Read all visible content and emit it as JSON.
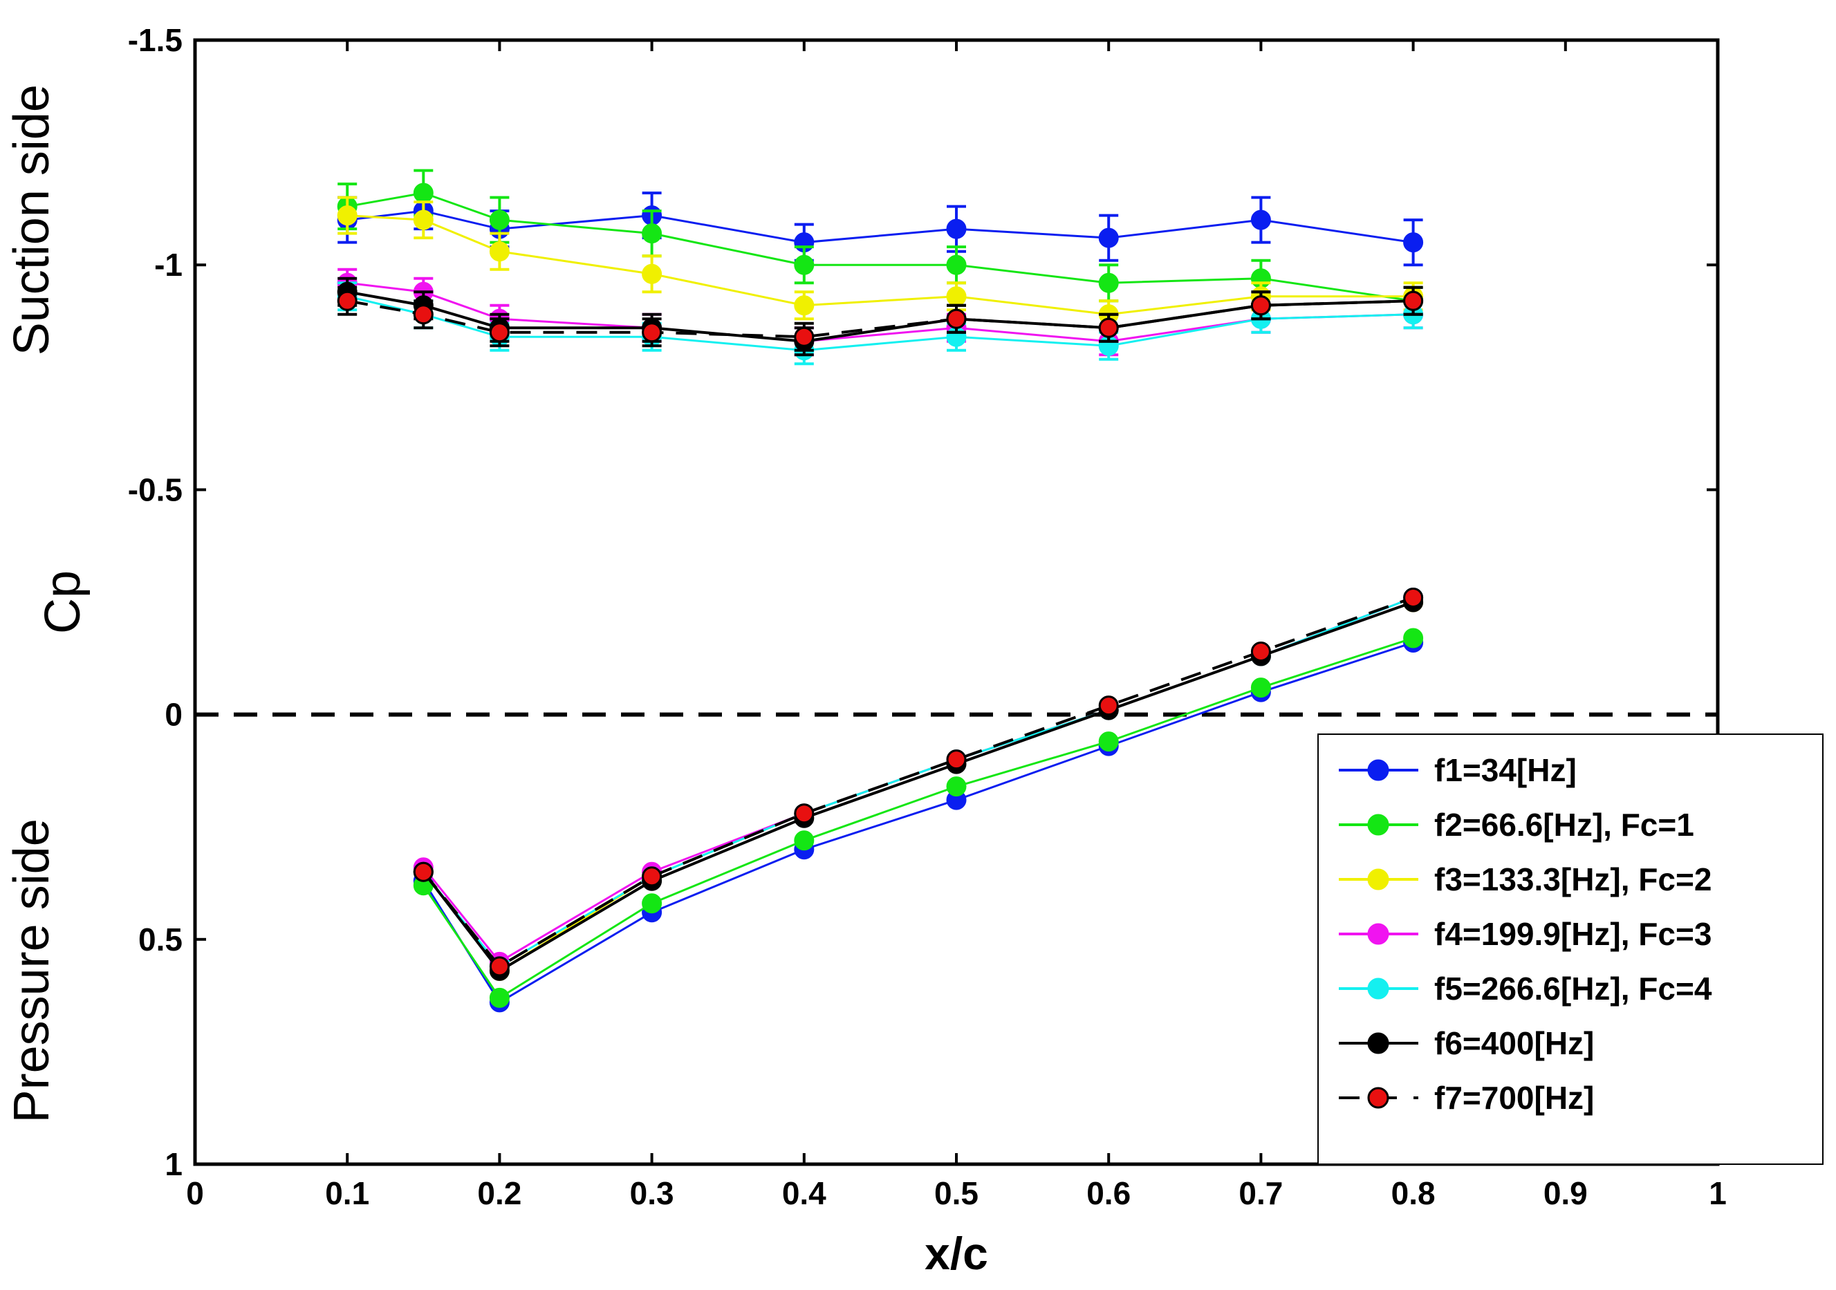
{
  "chart_data": {
    "type": "line",
    "title": "",
    "xlabel": "x/c",
    "ylabel": "Cp",
    "ylabel_upper": "Suction side",
    "ylabel_lower": "Pressure side",
    "xlim": [
      0,
      1
    ],
    "ylim": [
      1,
      -1.5
    ],
    "y_reversed": true,
    "grid": false,
    "legend_position": "bottom-right",
    "x_ticks": [
      0,
      0.1,
      0.2,
      0.3,
      0.4,
      0.5,
      0.6,
      0.7,
      0.8,
      0.9,
      1
    ],
    "x_tick_labels": [
      "0",
      "0.1",
      "0.2",
      "0.3",
      "0.4",
      "0.5",
      "0.6",
      "0.7",
      "0.8",
      "0.9",
      "1"
    ],
    "y_ticks": [
      -1.5,
      -1,
      -0.5,
      0,
      0.5,
      1
    ],
    "y_tick_labels": [
      "-1.5",
      "-1",
      "-0.5",
      "0",
      "0.5",
      "1"
    ],
    "zero_line": {
      "y": 0,
      "style": "dashed",
      "color": "#000000"
    },
    "series": [
      {
        "name": "f1=34[Hz]",
        "color": "#0a1ef0",
        "line": "solid",
        "marker_fill": "#0a1ef0",
        "suction": {
          "x": [
            0.1,
            0.15,
            0.2,
            0.3,
            0.4,
            0.5,
            0.6,
            0.7,
            0.8
          ],
          "y": [
            -1.1,
            -1.12,
            -1.08,
            -1.11,
            -1.05,
            -1.08,
            -1.06,
            -1.1,
            -1.05
          ],
          "err": [
            0.05,
            0.04,
            0.04,
            0.05,
            0.04,
            0.05,
            0.05,
            0.05,
            0.05
          ]
        },
        "pressure": {
          "x": [
            0.15,
            0.2,
            0.3,
            0.4,
            0.5,
            0.6,
            0.7,
            0.8
          ],
          "y": [
            0.37,
            0.64,
            0.44,
            0.3,
            0.19,
            0.07,
            -0.05,
            -0.16
          ]
        }
      },
      {
        "name": "f2=66.6[Hz], Fc=1",
        "color": "#14e614",
        "line": "solid",
        "marker_fill": "#14e614",
        "suction": {
          "x": [
            0.1,
            0.15,
            0.2,
            0.3,
            0.4,
            0.5,
            0.6,
            0.7,
            0.8
          ],
          "y": [
            -1.13,
            -1.16,
            -1.1,
            -1.07,
            -1.0,
            -1.0,
            -0.96,
            -0.97,
            -0.92
          ],
          "err": [
            0.05,
            0.05,
            0.05,
            0.05,
            0.04,
            0.04,
            0.04,
            0.04,
            0.03
          ]
        },
        "pressure": {
          "x": [
            0.15,
            0.2,
            0.3,
            0.4,
            0.5,
            0.6,
            0.7,
            0.8
          ],
          "y": [
            0.38,
            0.63,
            0.42,
            0.28,
            0.16,
            0.06,
            -0.06,
            -0.17
          ]
        }
      },
      {
        "name": "f3=133.3[Hz], Fc=2",
        "color": "#f0f000",
        "line": "solid",
        "marker_fill": "#f0f000",
        "suction": {
          "x": [
            0.1,
            0.15,
            0.2,
            0.3,
            0.4,
            0.5,
            0.6,
            0.7,
            0.8
          ],
          "y": [
            -1.11,
            -1.1,
            -1.03,
            -0.98,
            -0.91,
            -0.93,
            -0.89,
            -0.93,
            -0.93
          ],
          "err": [
            0.04,
            0.04,
            0.04,
            0.04,
            0.03,
            0.03,
            0.03,
            0.03,
            0.03
          ]
        },
        "pressure": {
          "x": [
            0.15,
            0.2,
            0.3,
            0.4,
            0.5,
            0.6,
            0.7,
            0.8
          ],
          "y": [
            0.35,
            0.57,
            0.36,
            0.22,
            0.1,
            -0.01,
            -0.13,
            -0.25
          ]
        }
      },
      {
        "name": "f4=199.9[Hz], Fc=3",
        "color": "#f014f0",
        "line": "solid",
        "marker_fill": "#f014f0",
        "suction": {
          "x": [
            0.1,
            0.15,
            0.2,
            0.3,
            0.4,
            0.5,
            0.6,
            0.7,
            0.8
          ],
          "y": [
            -0.96,
            -0.94,
            -0.88,
            -0.86,
            -0.83,
            -0.86,
            -0.83,
            -0.88,
            -0.89
          ],
          "err": [
            0.03,
            0.03,
            0.03,
            0.03,
            0.03,
            0.03,
            0.03,
            0.03,
            0.03
          ]
        },
        "pressure": {
          "x": [
            0.15,
            0.2,
            0.3,
            0.4,
            0.5,
            0.6,
            0.7,
            0.8
          ],
          "y": [
            0.34,
            0.55,
            0.35,
            0.22,
            0.1,
            -0.01,
            -0.13,
            -0.26
          ]
        }
      },
      {
        "name": "f5=266.6[Hz], Fc=4",
        "color": "#14f0f0",
        "line": "solid",
        "marker_fill": "#14f0f0",
        "suction": {
          "x": [
            0.1,
            0.15,
            0.2,
            0.3,
            0.4,
            0.5,
            0.6,
            0.7,
            0.8
          ],
          "y": [
            -0.93,
            -0.89,
            -0.84,
            -0.84,
            -0.81,
            -0.84,
            -0.82,
            -0.88,
            -0.89
          ],
          "err": [
            0.03,
            0.03,
            0.03,
            0.03,
            0.03,
            0.03,
            0.03,
            0.03,
            0.03
          ]
        },
        "pressure": {
          "x": [
            0.15,
            0.2,
            0.3,
            0.4,
            0.5,
            0.6,
            0.7,
            0.8
          ],
          "y": [
            0.35,
            0.56,
            0.36,
            0.22,
            0.1,
            -0.01,
            -0.13,
            -0.26
          ]
        }
      },
      {
        "name": "f6=400[Hz]",
        "color": "#000000",
        "line": "solid",
        "marker_fill": "#000000",
        "suction": {
          "x": [
            0.1,
            0.15,
            0.2,
            0.3,
            0.4,
            0.5,
            0.6,
            0.7,
            0.8
          ],
          "y": [
            -0.94,
            -0.91,
            -0.86,
            -0.86,
            -0.83,
            -0.88,
            -0.86,
            -0.91,
            -0.92
          ],
          "err": [
            0.03,
            0.03,
            0.03,
            0.03,
            0.03,
            0.03,
            0.03,
            0.03,
            0.03
          ]
        },
        "pressure": {
          "x": [
            0.15,
            0.2,
            0.3,
            0.4,
            0.5,
            0.6,
            0.7,
            0.8
          ],
          "y": [
            0.35,
            0.57,
            0.37,
            0.23,
            0.11,
            -0.01,
            -0.13,
            -0.25
          ]
        }
      },
      {
        "name": "f7=700[Hz]",
        "color": "#000000",
        "line": "dashed",
        "marker_fill": "#e81010",
        "suction": {
          "x": [
            0.1,
            0.15,
            0.2,
            0.3,
            0.4,
            0.5,
            0.6,
            0.7,
            0.8
          ],
          "y": [
            -0.92,
            -0.89,
            -0.85,
            -0.85,
            -0.84,
            -0.88,
            -0.86,
            -0.91,
            -0.92
          ],
          "err": [
            0.03,
            0.03,
            0.03,
            0.03,
            0.03,
            0.03,
            0.03,
            0.03,
            0.03
          ]
        },
        "pressure": {
          "x": [
            0.15,
            0.2,
            0.3,
            0.4,
            0.5,
            0.6,
            0.7,
            0.8
          ],
          "y": [
            0.35,
            0.56,
            0.36,
            0.22,
            0.1,
            -0.02,
            -0.14,
            -0.26
          ]
        }
      }
    ]
  }
}
